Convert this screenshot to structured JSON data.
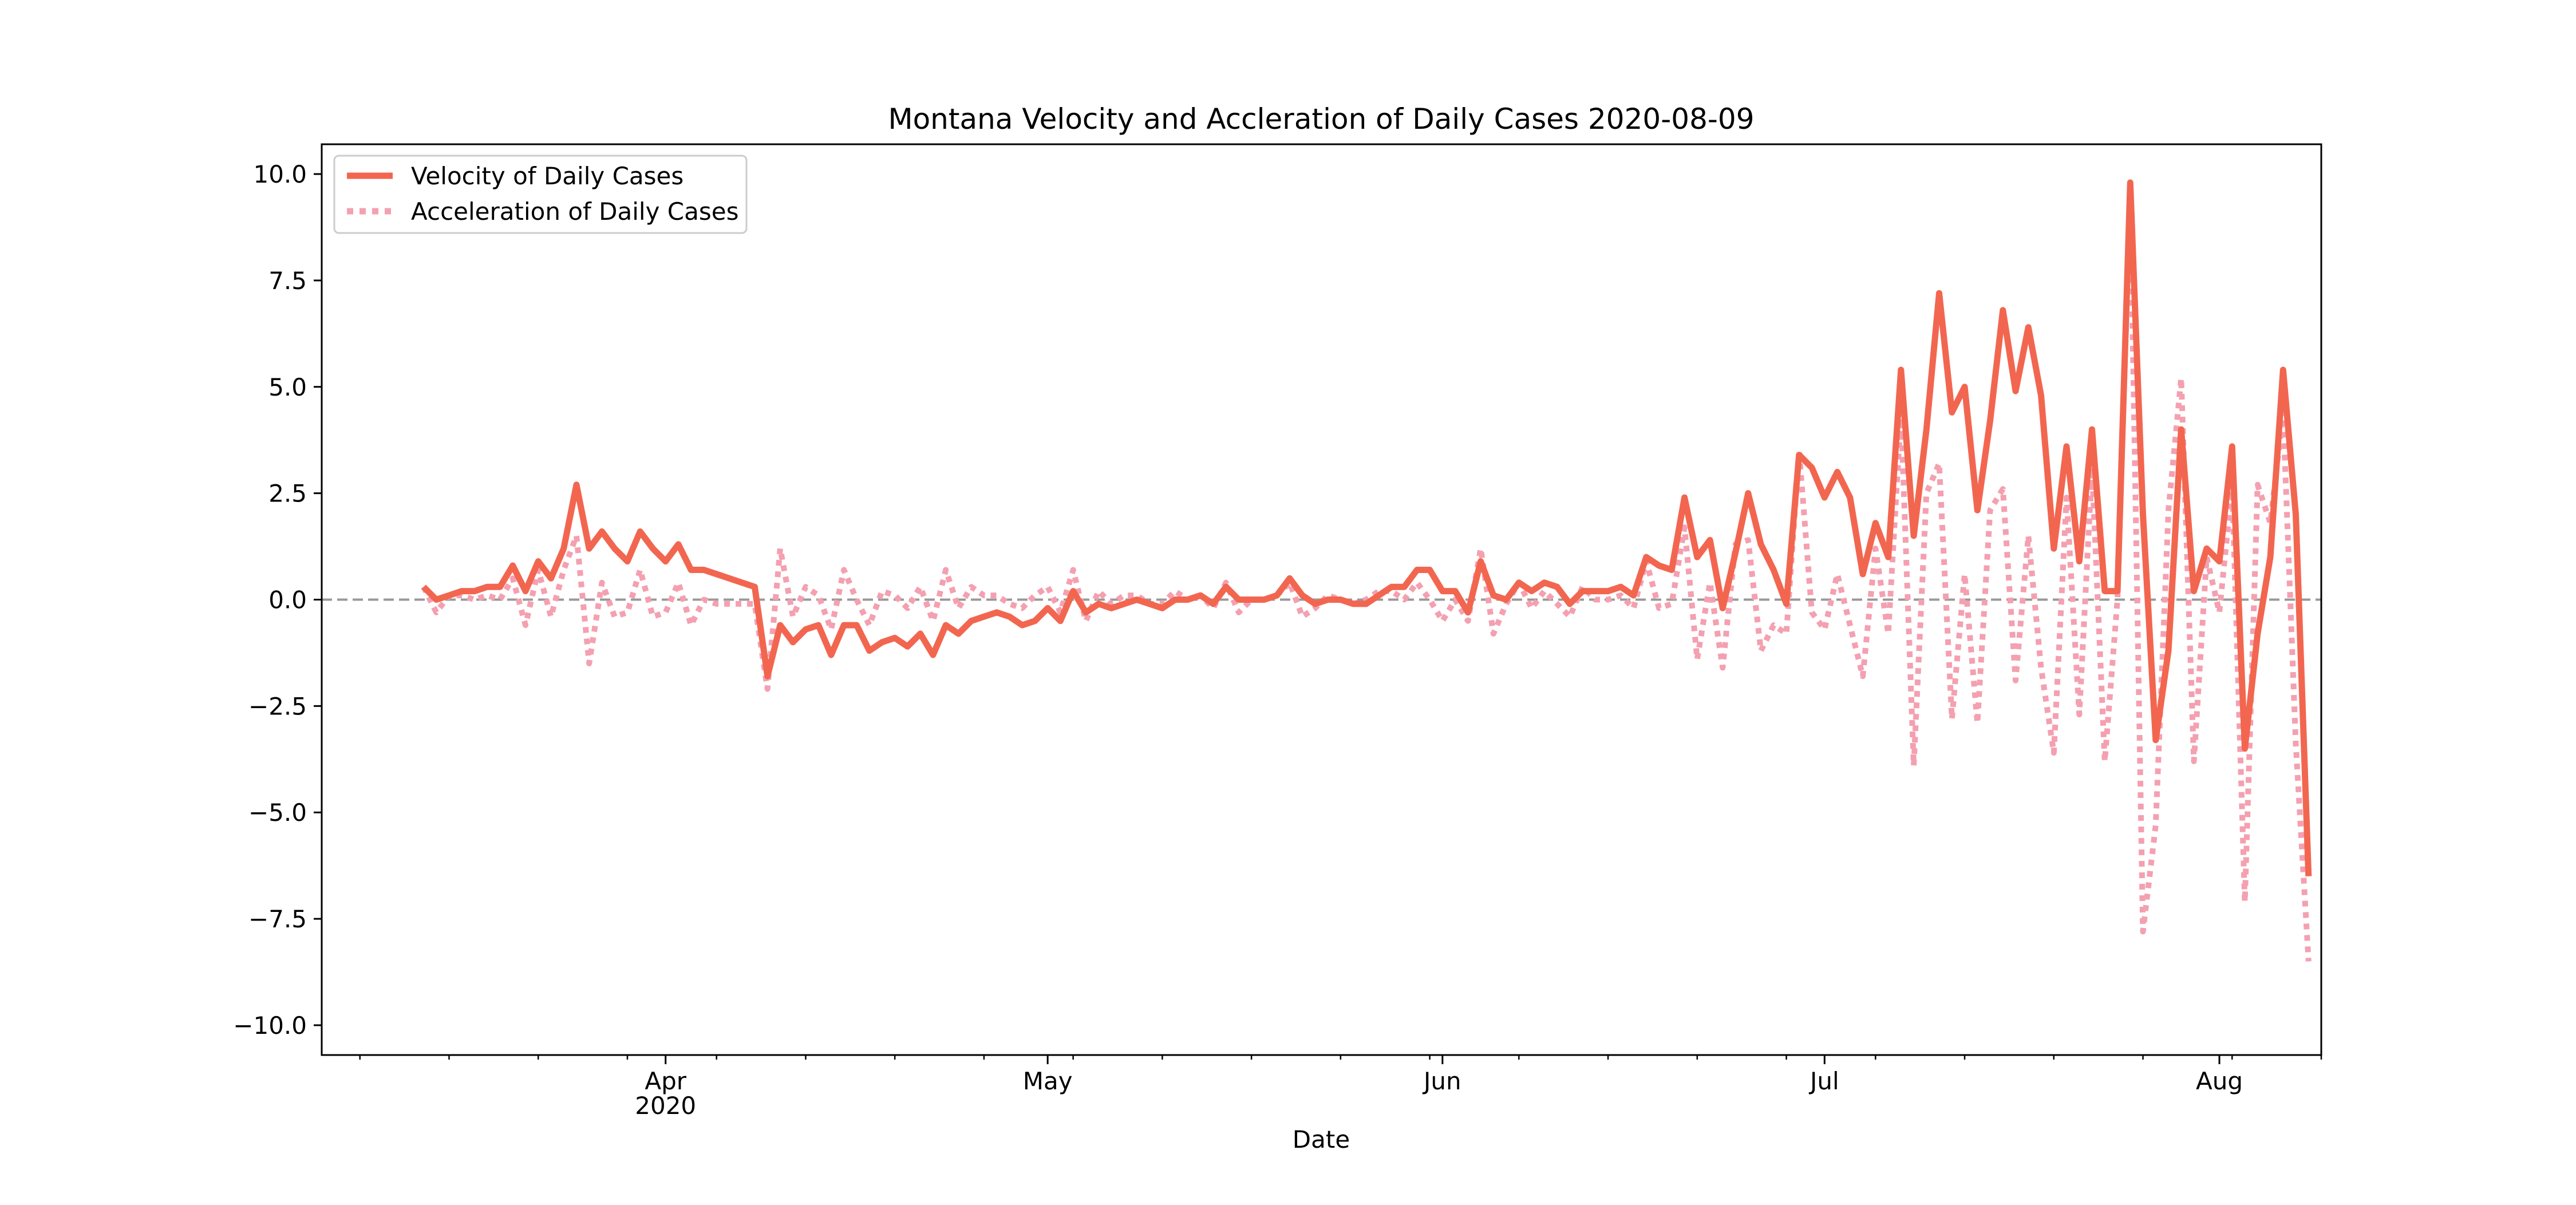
{
  "chart_data": {
    "type": "line",
    "title": "Montana Velocity and Accleration of Daily Cases 2020-08-09",
    "xlabel": "Date",
    "ylabel": "",
    "xlim": [
      "2020-03-05",
      "2020-08-09"
    ],
    "ylim": [
      -10.7,
      10.7
    ],
    "y_ticks": [
      "10.0",
      "7.5",
      "5.0",
      "2.5",
      "0.0",
      "−2.5",
      "−5.0",
      "−7.5",
      "−10.0"
    ],
    "x_ticks": [
      {
        "date": "2020-04-01",
        "label": "Apr",
        "sublabel": "2020"
      },
      {
        "date": "2020-05-01",
        "label": "May",
        "sublabel": ""
      },
      {
        "date": "2020-06-01",
        "label": "Jun",
        "sublabel": ""
      },
      {
        "date": "2020-07-01",
        "label": "Jul",
        "sublabel": ""
      },
      {
        "date": "2020-08-01",
        "label": "Aug",
        "sublabel": ""
      }
    ],
    "grid": false,
    "zero_line": {
      "y": 0,
      "style": "dashed",
      "color": "#999999"
    },
    "legend": {
      "placement": "top-left"
    },
    "start_date": "2020-03-13",
    "series": [
      {
        "name": "Velocity of Daily Cases",
        "color": "#f26650",
        "style": "solid",
        "values": [
          0.3,
          0.0,
          0.1,
          0.2,
          0.2,
          0.3,
          0.3,
          0.8,
          0.2,
          0.9,
          0.5,
          1.2,
          2.7,
          1.2,
          1.6,
          1.2,
          0.9,
          1.6,
          1.2,
          0.9,
          1.3,
          0.7,
          0.7,
          0.6,
          0.5,
          0.4,
          0.3,
          -1.8,
          -0.6,
          -1.0,
          -0.7,
          -0.6,
          -1.3,
          -0.6,
          -0.6,
          -1.2,
          -1.0,
          -0.9,
          -1.1,
          -0.8,
          -1.3,
          -0.6,
          -0.8,
          -0.5,
          -0.4,
          -0.3,
          -0.4,
          -0.6,
          -0.5,
          -0.2,
          -0.5,
          0.2,
          -0.3,
          -0.1,
          -0.2,
          -0.1,
          0.0,
          -0.1,
          -0.2,
          0.0,
          0.0,
          0.1,
          -0.1,
          0.3,
          0.0,
          0.0,
          0.0,
          0.1,
          0.5,
          0.1,
          -0.1,
          0.0,
          0.0,
          -0.1,
          -0.1,
          0.1,
          0.3,
          0.3,
          0.7,
          0.7,
          0.2,
          0.2,
          -0.3,
          0.9,
          0.1,
          0.0,
          0.4,
          0.2,
          0.4,
          0.3,
          -0.1,
          0.2,
          0.2,
          0.2,
          0.3,
          0.1,
          1.0,
          0.8,
          0.7,
          2.4,
          1.0,
          1.4,
          -0.2,
          1.1,
          2.5,
          1.3,
          0.7,
          -0.1,
          3.4,
          3.1,
          2.4,
          3.0,
          2.4,
          0.6,
          1.8,
          1.0,
          5.4,
          1.5,
          4.0,
          7.2,
          4.4,
          5.0,
          2.1,
          4.2,
          6.8,
          4.9,
          6.4,
          4.8,
          1.2,
          3.6,
          0.9,
          4.0,
          0.2,
          0.2,
          9.8,
          2.0,
          -3.3,
          -1.2,
          4.0,
          0.2,
          1.2,
          0.9,
          3.6,
          -3.5,
          -0.8,
          1.0,
          5.4,
          2.0,
          -6.5
        ]
      },
      {
        "name": "Acceleration of Daily Cases",
        "color": "#f4a0b0",
        "style": "dotted",
        "values": [
          0.3,
          -0.3,
          0.1,
          0.1,
          0.0,
          0.1,
          0.0,
          0.5,
          -0.6,
          0.7,
          -0.4,
          0.7,
          1.5,
          -1.5,
          0.4,
          -0.4,
          -0.3,
          0.7,
          -0.4,
          -0.3,
          0.4,
          -0.6,
          0.0,
          -0.1,
          -0.1,
          -0.1,
          -0.1,
          -2.1,
          1.2,
          -0.4,
          0.3,
          0.1,
          -0.7,
          0.7,
          0.0,
          -0.6,
          0.2,
          0.1,
          -0.2,
          0.3,
          -0.5,
          0.7,
          -0.2,
          0.3,
          0.1,
          0.1,
          -0.1,
          -0.2,
          0.1,
          0.3,
          -0.3,
          0.7,
          -0.5,
          0.2,
          -0.1,
          0.1,
          0.1,
          -0.1,
          -0.1,
          0.2,
          0.0,
          0.1,
          -0.2,
          0.4,
          -0.3,
          0.0,
          0.0,
          0.1,
          0.4,
          -0.4,
          -0.2,
          0.1,
          0.0,
          -0.1,
          0.0,
          0.2,
          0.2,
          0.0,
          0.4,
          0.0,
          -0.5,
          0.0,
          -0.5,
          1.2,
          -0.8,
          -0.1,
          0.4,
          -0.2,
          0.2,
          -0.1,
          -0.4,
          0.3,
          0.0,
          0.0,
          0.1,
          -0.2,
          0.9,
          -0.2,
          -0.1,
          1.7,
          -1.4,
          0.4,
          -1.6,
          1.3,
          1.4,
          -1.2,
          -0.6,
          -0.8,
          3.5,
          -0.3,
          -0.7,
          0.6,
          -0.6,
          -1.8,
          1.2,
          -0.8,
          4.4,
          -3.9,
          2.5,
          3.2,
          -2.8,
          0.6,
          -2.9,
          2.1,
          2.6,
          -1.9,
          1.5,
          -1.6,
          -3.6,
          2.4,
          -2.7,
          3.1,
          -3.8,
          0.0,
          9.6,
          -7.8,
          -5.3,
          2.1,
          5.2,
          -3.8,
          1.0,
          -0.3,
          2.7,
          -7.1,
          2.7,
          1.8,
          4.4,
          -3.4,
          -8.5
        ]
      }
    ]
  }
}
